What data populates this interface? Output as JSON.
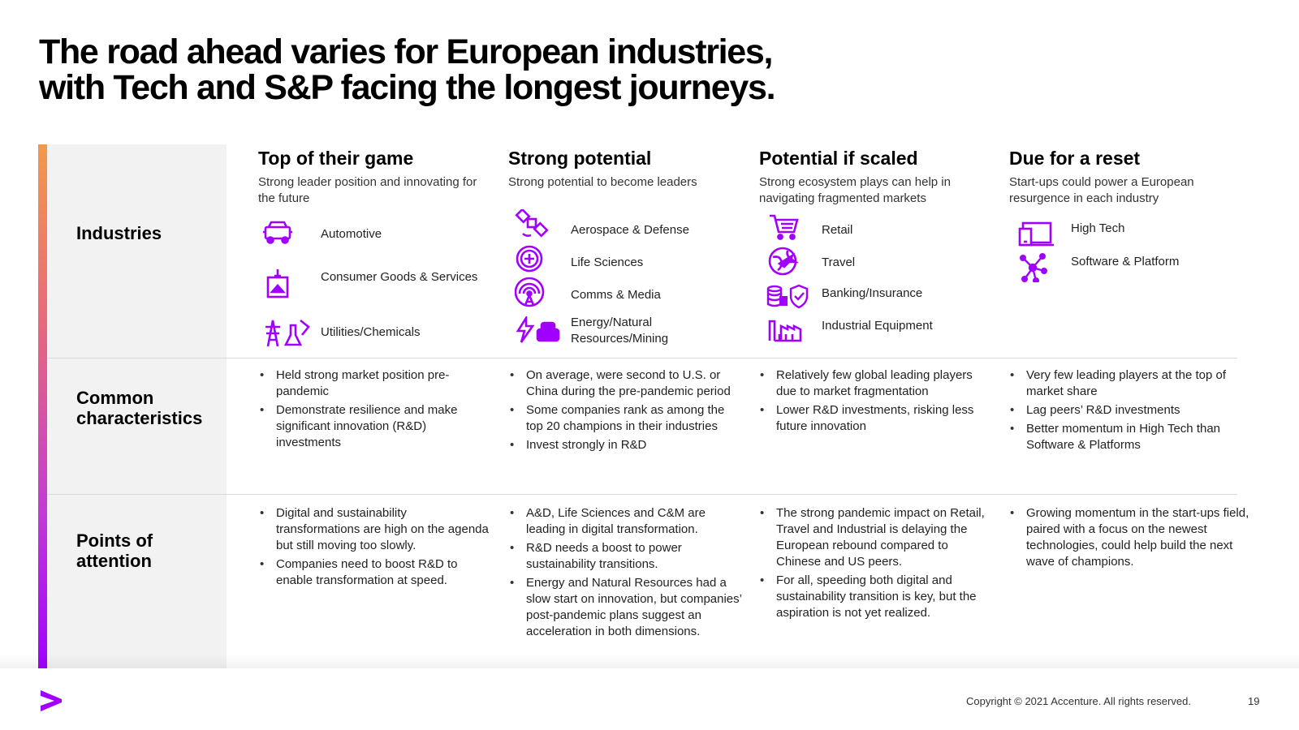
{
  "title": {
    "line1": "The road ahead varies for European industries,",
    "line2": "with Tech and S&P facing the longest journeys."
  },
  "rows": {
    "industries": "Industries",
    "common": "Common characteristics",
    "attention": "Points of attention"
  },
  "columns": [
    {
      "title": "Top of their game",
      "subtitle": "Strong leader position and innovating for the future",
      "industries": [
        {
          "label": "Automotive",
          "icon": "car-icon"
        },
        {
          "label": "Consumer Goods & Services",
          "icon": "consumer-goods-icon"
        },
        {
          "label": "Utilities/Chemicals",
          "icon": "utilities-chemicals-icon"
        }
      ],
      "characteristics": [
        "Held strong market position pre-pandemic",
        "Demonstrate resilience and make significant innovation (R&D) investments"
      ],
      "attention": [
        "Digital and sustainability transformations are high on the agenda but still moving too slowly.",
        "Companies need to boost R&D to enable transformation at speed."
      ]
    },
    {
      "title": "Strong potential",
      "subtitle": "Strong potential to become leaders",
      "industries": [
        {
          "label": "Aerospace & Defense",
          "icon": "satellite-icon"
        },
        {
          "label": "Life Sciences",
          "icon": "life-sciences-icon"
        },
        {
          "label": "Comms & Media",
          "icon": "antenna-icon"
        },
        {
          "label": "Energy/Natural Resources/Mining",
          "icon": "energy-mining-icon"
        }
      ],
      "characteristics": [
        "On average, were second to U.S. or China during the pre-pandemic period",
        "Some companies rank as among the top 20 champions in their industries",
        "Invest strongly in R&D"
      ],
      "attention": [
        "A&D, Life Sciences and C&M are leading in digital transformation.",
        "R&D needs a boost to power sustainability transitions.",
        "Energy and Natural Resources had a slow start on innovation, but companies’ post-pandemic plans suggest an acceleration in both dimensions."
      ]
    },
    {
      "title": "Potential if scaled",
      "subtitle": "Strong ecosystem plays can help in navigating fragmented markets",
      "industries": [
        {
          "label": "Retail",
          "icon": "shopping-cart-icon"
        },
        {
          "label": "Travel",
          "icon": "globe-plane-icon"
        },
        {
          "label": "Banking/Insurance",
          "icon": "coins-shield-icon"
        },
        {
          "label": "Industrial Equipment",
          "icon": "factory-icon"
        }
      ],
      "characteristics": [
        "Relatively few global leading players due to market fragmentation",
        "Lower R&D investments, risking less future innovation"
      ],
      "attention": [
        "The strong pandemic impact on Retail, Travel and Industrial is delaying the European rebound compared to Chinese and US peers.",
        "For all, speeding both digital and sustainability transition is key, but the aspiration is not yet realized."
      ]
    },
    {
      "title": "Due for a reset",
      "subtitle": "Start-ups could power a European resurgence in each industry",
      "industries": [
        {
          "label": "High Tech",
          "icon": "devices-icon"
        },
        {
          "label": "Software & Platform",
          "icon": "network-icon"
        }
      ],
      "characteristics": [
        "Very few leading players at the top of market share",
        "Lag peers’ R&D investments",
        "Better momentum in High Tech than Software & Platforms"
      ],
      "attention": [
        "Growing momentum in the start-ups field, paired with a focus on the newest technologies, could help build the next wave of champions."
      ]
    }
  ],
  "footer": {
    "copyright": "Copyright © 2021 Accenture. All rights reserved.",
    "page": "19",
    "logo": "accenture-logo-icon"
  },
  "colors": {
    "accent": "#a100ff",
    "bar_top": "#f2994a",
    "bar_bottom": "#a100ff",
    "panel": "#f2f2f2"
  }
}
